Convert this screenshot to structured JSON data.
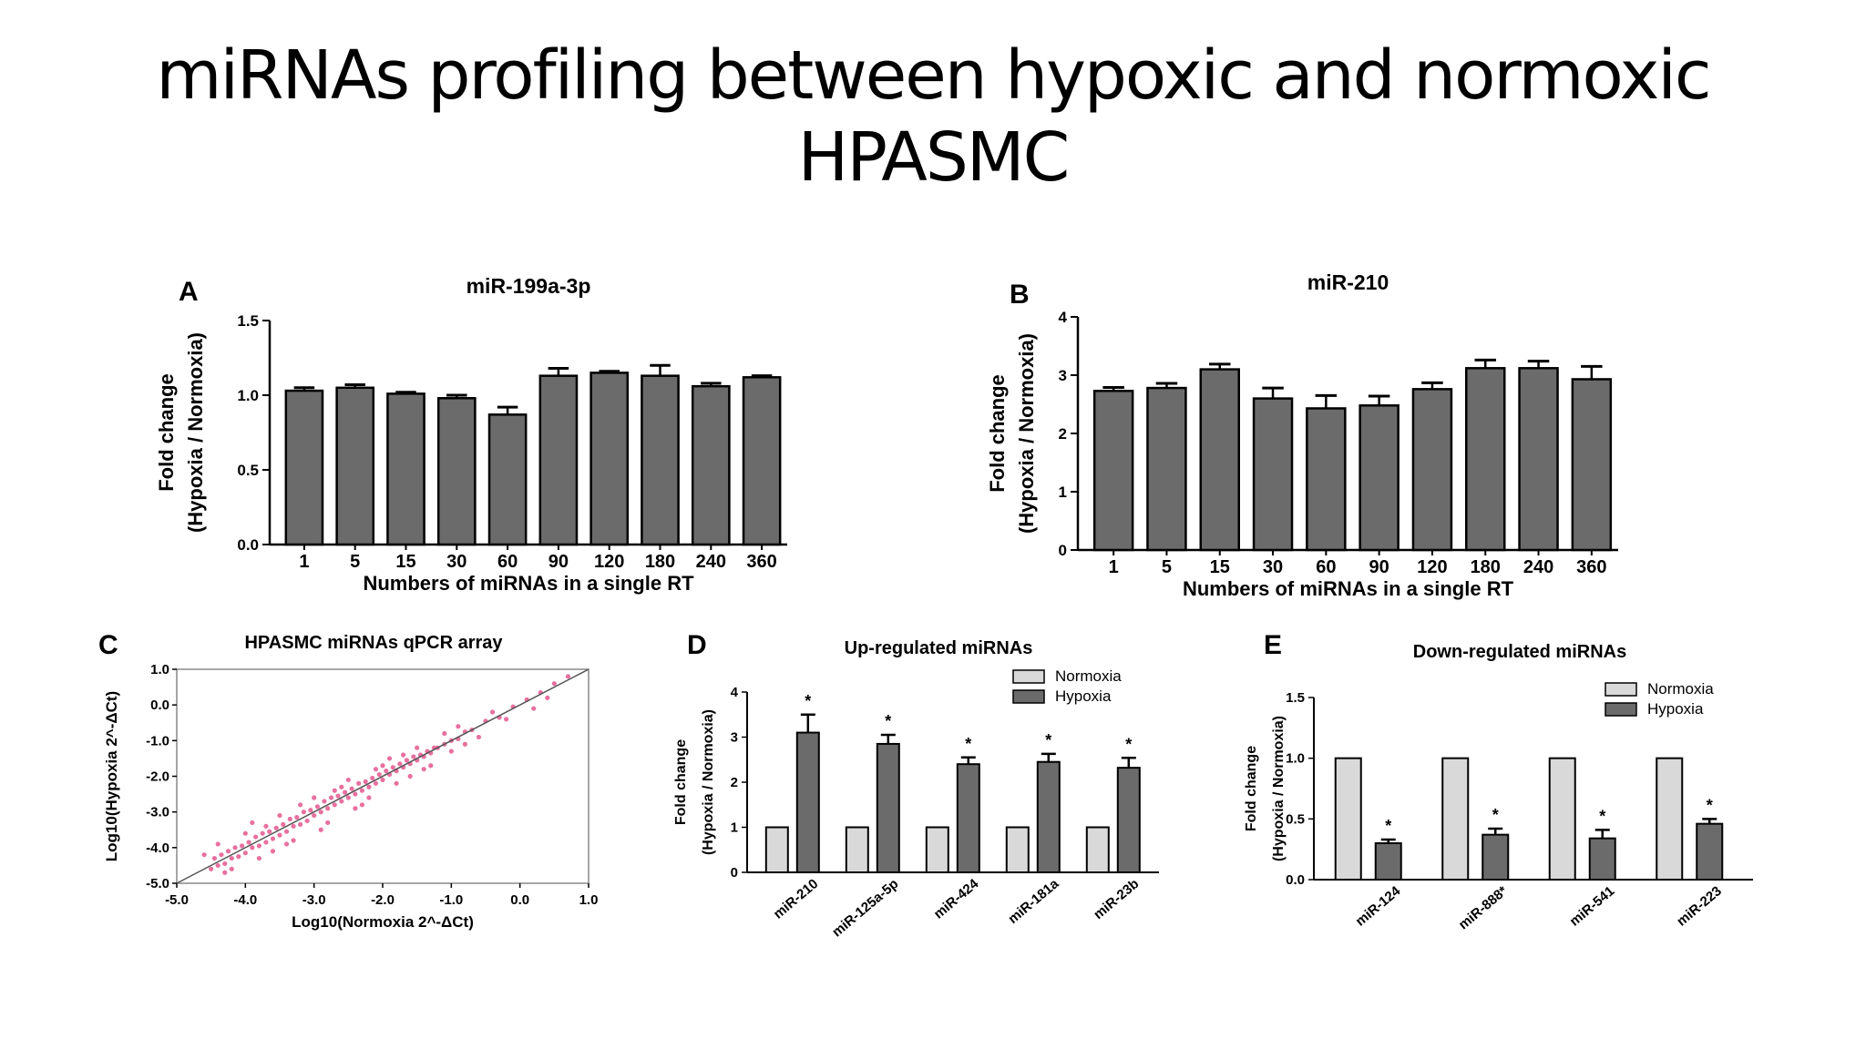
{
  "slide": {
    "title_line1": "miRNAs profiling between hypoxic and normoxic",
    "title_line2": "HPASMC"
  },
  "colors": {
    "hypoxia_bar": "#6b6b6b",
    "normoxia_bar": "#d9d9d9",
    "scatter_points": "#e0407f",
    "axis": "#000000"
  },
  "chart_data": [
    {
      "panel": "A",
      "type": "bar",
      "title": "miR-199a-3p",
      "categories": [
        "1",
        "5",
        "15",
        "30",
        "60",
        "90",
        "120",
        "180",
        "240",
        "360"
      ],
      "values": [
        1.03,
        1.05,
        1.01,
        0.98,
        0.87,
        1.13,
        1.15,
        1.13,
        1.06,
        1.12
      ],
      "errors": [
        0.02,
        0.02,
        0.01,
        0.02,
        0.05,
        0.05,
        0.01,
        0.07,
        0.02,
        0.01
      ],
      "xlabel": "Numbers of miRNAs in a single RT",
      "ylabel_line1": "Fold change",
      "ylabel_line2": "(Hypoxia / Normoxia)",
      "ylim": [
        0,
        1.5
      ],
      "yticks": [
        "0.0",
        "0.5",
        "1.0",
        "1.5"
      ],
      "ytick_values": [
        0,
        0.5,
        1.0,
        1.5
      ]
    },
    {
      "panel": "B",
      "type": "bar",
      "title": "miR-210",
      "categories": [
        "1",
        "5",
        "15",
        "30",
        "60",
        "90",
        "120",
        "180",
        "240",
        "360"
      ],
      "values": [
        2.73,
        2.78,
        3.1,
        2.6,
        2.43,
        2.48,
        2.76,
        3.12,
        3.12,
        2.93
      ],
      "errors": [
        0.06,
        0.08,
        0.09,
        0.18,
        0.22,
        0.16,
        0.11,
        0.14,
        0.12,
        0.22
      ],
      "xlabel": "Numbers of miRNAs in a single RT",
      "ylabel_line1": "Fold change",
      "ylabel_line2": "(Hypoxia / Normoxia)",
      "ylim": [
        0,
        4
      ],
      "yticks": [
        "0",
        "1",
        "2",
        "3",
        "4"
      ],
      "ytick_values": [
        0,
        1,
        2,
        3,
        4
      ]
    },
    {
      "panel": "C",
      "type": "scatter",
      "title": "HPASMC miRNAs qPCR array",
      "xlabel": "Log10(Normoxia 2^-ΔCt)",
      "ylabel": "Log10(Hypoxia 2^-ΔCt)",
      "xlim": [
        -5.0,
        1.0
      ],
      "ylim": [
        -5.0,
        1.0
      ],
      "xticks": [
        "-5.0",
        "-4.0",
        "-3.0",
        "-2.0",
        "-1.0",
        "0.0",
        "1.0"
      ],
      "yticks": [
        "-5.0",
        "-4.0",
        "-3.0",
        "-2.0",
        "-1.0",
        "0.0",
        "1.0"
      ],
      "tick_values": [
        -5,
        -4,
        -3,
        -2,
        -1,
        0,
        1
      ],
      "identity_line": true,
      "points": [
        [
          -4.5,
          -4.6
        ],
        [
          -4.45,
          -4.3
        ],
        [
          -4.4,
          -4.5
        ],
        [
          -4.35,
          -4.2
        ],
        [
          -4.3,
          -4.45
        ],
        [
          -4.25,
          -4.1
        ],
        [
          -4.2,
          -4.3
        ],
        [
          -4.15,
          -4.0
        ],
        [
          -4.1,
          -4.25
        ],
        [
          -4.05,
          -3.95
        ],
        [
          -4.0,
          -4.15
        ],
        [
          -3.95,
          -3.85
        ],
        [
          -3.9,
          -4.0
        ],
        [
          -3.85,
          -3.7
        ],
        [
          -3.8,
          -3.95
        ],
        [
          -3.75,
          -3.6
        ],
        [
          -3.7,
          -3.85
        ],
        [
          -3.65,
          -3.55
        ],
        [
          -3.6,
          -3.75
        ],
        [
          -3.55,
          -3.45
        ],
        [
          -3.5,
          -3.65
        ],
        [
          -3.45,
          -3.35
        ],
        [
          -3.4,
          -3.55
        ],
        [
          -3.35,
          -3.2
        ],
        [
          -3.3,
          -3.4
        ],
        [
          -3.25,
          -3.15
        ],
        [
          -3.2,
          -3.35
        ],
        [
          -3.15,
          -3.0
        ],
        [
          -3.1,
          -3.25
        ],
        [
          -3.05,
          -2.95
        ],
        [
          -3.0,
          -3.1
        ],
        [
          -2.95,
          -2.85
        ],
        [
          -2.9,
          -3.0
        ],
        [
          -2.85,
          -2.7
        ],
        [
          -2.8,
          -2.9
        ],
        [
          -2.75,
          -2.6
        ],
        [
          -2.7,
          -2.8
        ],
        [
          -2.65,
          -2.55
        ],
        [
          -2.6,
          -2.7
        ],
        [
          -2.55,
          -2.45
        ],
        [
          -2.5,
          -2.6
        ],
        [
          -2.45,
          -2.35
        ],
        [
          -2.4,
          -2.5
        ],
        [
          -2.35,
          -2.2
        ],
        [
          -2.3,
          -2.4
        ],
        [
          -2.25,
          -2.15
        ],
        [
          -2.2,
          -2.3
        ],
        [
          -2.15,
          -2.05
        ],
        [
          -2.1,
          -2.2
        ],
        [
          -2.05,
          -1.95
        ],
        [
          -2.0,
          -2.1
        ],
        [
          -1.95,
          -1.85
        ],
        [
          -1.9,
          -1.95
        ],
        [
          -1.85,
          -1.75
        ],
        [
          -1.8,
          -1.85
        ],
        [
          -1.75,
          -1.65
        ],
        [
          -1.7,
          -1.75
        ],
        [
          -1.65,
          -1.55
        ],
        [
          -1.6,
          -1.65
        ],
        [
          -1.55,
          -1.45
        ],
        [
          -1.5,
          -1.55
        ],
        [
          -1.45,
          -1.4
        ],
        [
          -1.4,
          -1.45
        ],
        [
          -1.35,
          -1.3
        ],
        [
          -1.3,
          -1.35
        ],
        [
          -1.25,
          -1.2
        ],
        [
          -1.2,
          -1.2
        ],
        [
          -1.1,
          -1.1
        ],
        [
          -1.0,
          -1.0
        ],
        [
          -0.9,
          -0.95
        ],
        [
          -0.8,
          -0.75
        ],
        [
          -0.7,
          -0.7
        ],
        [
          -0.5,
          -0.45
        ],
        [
          -0.3,
          -0.35
        ],
        [
          -0.1,
          -0.05
        ],
        [
          0.1,
          0.15
        ],
        [
          0.3,
          0.35
        ],
        [
          0.5,
          0.6
        ],
        [
          -4.6,
          -4.2
        ],
        [
          -4.3,
          -4.7
        ],
        [
          -4.0,
          -3.6
        ],
        [
          -3.8,
          -4.3
        ],
        [
          -3.5,
          -3.1
        ],
        [
          -3.3,
          -3.8
        ],
        [
          -3.0,
          -2.6
        ],
        [
          -2.8,
          -3.3
        ],
        [
          -2.5,
          -2.1
        ],
        [
          -2.3,
          -2.8
        ],
        [
          -2.0,
          -1.7
        ],
        [
          -1.8,
          -2.2
        ],
        [
          -1.5,
          -1.2
        ],
        [
          -1.3,
          -1.7
        ],
        [
          -1.0,
          -1.3
        ],
        [
          -0.8,
          -1.1
        ],
        [
          -0.6,
          -0.9
        ],
        [
          -3.9,
          -3.3
        ],
        [
          -3.6,
          -4.1
        ],
        [
          -3.2,
          -2.8
        ],
        [
          -2.9,
          -3.5
        ],
        [
          -2.6,
          -2.3
        ],
        [
          -2.2,
          -2.6
        ],
        [
          -1.9,
          -1.5
        ],
        [
          -1.6,
          -2.0
        ],
        [
          -1.1,
          -0.8
        ],
        [
          -0.4,
          -0.2
        ],
        [
          0.2,
          -0.1
        ],
        [
          0.7,
          0.8
        ],
        [
          -4.4,
          -3.9
        ],
        [
          -4.2,
          -4.6
        ],
        [
          -3.7,
          -3.4
        ],
        [
          -3.4,
          -3.9
        ],
        [
          -2.7,
          -2.4
        ],
        [
          -2.4,
          -2.9
        ],
        [
          -2.1,
          -1.8
        ],
        [
          -1.7,
          -1.4
        ],
        [
          -1.4,
          -1.8
        ],
        [
          -0.9,
          -0.6
        ],
        [
          -0.2,
          -0.4
        ],
        [
          0.4,
          0.2
        ]
      ]
    },
    {
      "panel": "D",
      "type": "bar",
      "title": "Up-regulated miRNAs",
      "categories": [
        "miR-210",
        "miR-125a-5p",
        "miR-424",
        "miR-181a",
        "miR-23b"
      ],
      "series": [
        {
          "name": "Normoxia",
          "values": [
            1,
            1,
            1,
            1,
            1
          ]
        },
        {
          "name": "Hypoxia",
          "values": [
            3.1,
            2.85,
            2.4,
            2.45,
            2.32
          ],
          "errors": [
            0.4,
            0.2,
            0.15,
            0.18,
            0.22
          ]
        }
      ],
      "significance": [
        "*",
        "*",
        "*",
        "*",
        "*"
      ],
      "ylabel_line1": "Fold change",
      "ylabel_line2": "(Hypoxia / Normoxia)",
      "ylim": [
        0,
        4
      ],
      "yticks": [
        "0",
        "1",
        "2",
        "3",
        "4"
      ],
      "ytick_values": [
        0,
        1,
        2,
        3,
        4
      ]
    },
    {
      "panel": "E",
      "type": "bar",
      "title": "Down-regulated miRNAs",
      "categories": [
        "miR-124",
        "miR-888*",
        "miR-541",
        "miR-223"
      ],
      "series": [
        {
          "name": "Normoxia",
          "values": [
            1,
            1,
            1,
            1
          ]
        },
        {
          "name": "Hypoxia",
          "values": [
            0.3,
            0.37,
            0.34,
            0.46
          ],
          "errors": [
            0.03,
            0.05,
            0.07,
            0.04
          ]
        }
      ],
      "significance": [
        "*",
        "*",
        "*",
        "*"
      ],
      "ylabel_line1": "Fold change",
      "ylabel_line2": "(Hypoxia / Normoxia)",
      "ylim": [
        0,
        1.5
      ],
      "yticks": [
        "0.0",
        "0.5",
        "1.0",
        "1.5"
      ],
      "ytick_values": [
        0,
        0.5,
        1.0,
        1.5
      ]
    }
  ]
}
